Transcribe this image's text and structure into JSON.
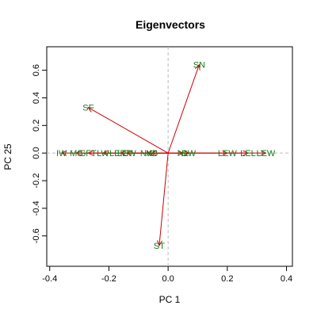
{
  "chart_data": {
    "type": "scatter",
    "title": "Eigenvectors",
    "xlabel": "PC 1",
    "ylabel": "PC 25",
    "xlim": [
      -0.41,
      0.42
    ],
    "ylim": [
      -0.82,
      0.77
    ],
    "xticks": [
      "-0.4",
      "-0.2",
      "0.0",
      "0.2",
      "0.4"
    ],
    "xtick_values": [
      -0.4,
      -0.2,
      0.0,
      0.2,
      0.4
    ],
    "yticks": [
      "-0.6",
      "-0.4",
      "-0.2",
      "0.0",
      "0.2",
      "0.4",
      "0.6"
    ],
    "ytick_values": [
      -0.6,
      -0.4,
      -0.2,
      0.0,
      0.2,
      0.4,
      0.6
    ],
    "reference_lines": {
      "x": 0,
      "y": 0,
      "style": "dashed",
      "color": "#bbbbbb"
    },
    "arrow_color": "#cc0000",
    "label_color": "#1a7a1a",
    "arrows": [
      {
        "label": "SN",
        "x": 0.105,
        "y": 0.64
      },
      {
        "label": "SF",
        "x": -0.27,
        "y": 0.33
      },
      {
        "label": "ST",
        "x": -0.03,
        "y": -0.67
      },
      {
        "label": "IW",
        "x": -0.36,
        "y": 0.0
      },
      {
        "label": "MS",
        "x": -0.31,
        "y": 0.0
      },
      {
        "label": "SFT",
        "x": -0.27,
        "y": 0.0
      },
      {
        "label": "LW",
        "x": -0.22,
        "y": 0.0
      },
      {
        "label": "LERP",
        "x": -0.16,
        "y": 0.0
      },
      {
        "label": "LEW",
        "x": -0.14,
        "y": 0.0
      },
      {
        "label": "NW",
        "x": -0.07,
        "y": 0.0
      },
      {
        "label": "NB",
        "x": -0.055,
        "y": 0.0
      },
      {
        "label": "NL",
        "x": 0.05,
        "y": 0.0
      },
      {
        "label": "SW",
        "x": 0.07,
        "y": 0.0
      },
      {
        "label": "LEW",
        "x": 0.2,
        "y": 0.0
      },
      {
        "label": "LEL",
        "x": 0.27,
        "y": 0.0
      },
      {
        "label": "LEW",
        "x": 0.33,
        "y": 0.0
      }
    ]
  }
}
